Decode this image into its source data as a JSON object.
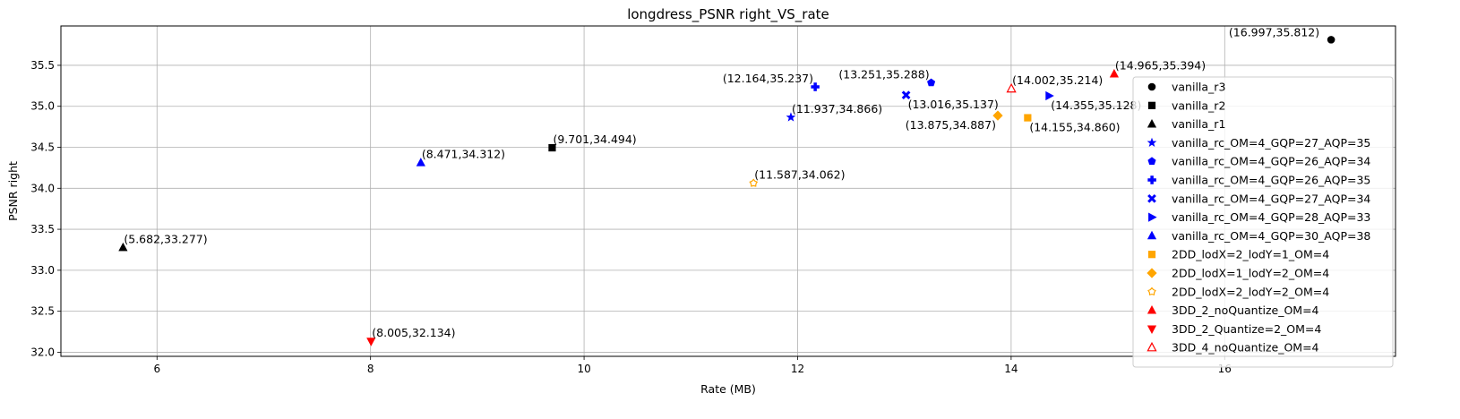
{
  "chart_data": {
    "type": "scatter",
    "title": "longdress_PSNR right_VS_rate",
    "xlabel": "Rate (MB)",
    "ylabel": "PSNR right",
    "xlim": [
      5.1,
      17.6
    ],
    "ylim": [
      31.95,
      35.98
    ],
    "xticks": [
      6,
      8,
      10,
      12,
      14,
      16
    ],
    "xtick_labels": [
      "6",
      "8",
      "10",
      "12",
      "14",
      "16"
    ],
    "yticks": [
      32.0,
      32.5,
      33.0,
      33.5,
      34.0,
      34.5,
      35.0,
      35.5
    ],
    "ytick_labels": [
      "32.0",
      "32.5",
      "33.0",
      "33.5",
      "34.0",
      "34.5",
      "35.0",
      "35.5"
    ],
    "grid": true,
    "legend_position": "right",
    "series": [
      {
        "name": "vanilla_r3",
        "marker": "circle",
        "color": "#000000",
        "filled": true,
        "x": 16.997,
        "y": 35.812,
        "label": "(16.997,35.812)",
        "label_side": "left"
      },
      {
        "name": "vanilla_r2",
        "marker": "square",
        "color": "#000000",
        "filled": true,
        "x": 9.701,
        "y": 34.494,
        "label": "(9.701,34.494)",
        "label_side": "upper-right"
      },
      {
        "name": "vanilla_r1",
        "marker": "triangle-up",
        "color": "#000000",
        "filled": true,
        "x": 5.682,
        "y": 33.277,
        "label": "(5.682,33.277)",
        "label_side": "upper-right"
      },
      {
        "name": "vanilla_rc_OM=4_GQP=27_AQP=35",
        "marker": "star",
        "color": "#0000ff",
        "filled": true,
        "x": 11.937,
        "y": 34.866,
        "label": "(11.937,34.866)",
        "label_side": "upper-right"
      },
      {
        "name": "vanilla_rc_OM=4_GQP=26_AQP=34",
        "marker": "pentagon",
        "color": "#0000ff",
        "filled": true,
        "x": 13.251,
        "y": 35.288,
        "label": "(13.251,35.288)",
        "label_side": "upper-left"
      },
      {
        "name": "vanilla_rc_OM=4_GQP=26_AQP=35",
        "marker": "plus",
        "color": "#0000ff",
        "filled": true,
        "x": 12.164,
        "y": 35.237,
        "label": "(12.164,35.237)",
        "label_side": "upper-left"
      },
      {
        "name": "vanilla_rc_OM=4_GQP=27_AQP=34",
        "marker": "x",
        "color": "#0000ff",
        "filled": true,
        "x": 13.016,
        "y": 35.137,
        "label": "(13.016,35.137)",
        "label_side": "lower-right"
      },
      {
        "name": "vanilla_rc_OM=4_GQP=28_AQP=33",
        "marker": "triangle-right",
        "color": "#0000ff",
        "filled": true,
        "x": 14.355,
        "y": 35.128,
        "label": "(14.355,35.128)",
        "label_side": "lower-right"
      },
      {
        "name": "vanilla_rc_OM=4_GQP=30_AQP=38",
        "marker": "triangle-up",
        "color": "#0000ff",
        "filled": true,
        "x": 8.471,
        "y": 34.312,
        "label": "(8.471,34.312)",
        "label_side": "upper-right"
      },
      {
        "name": "2DD_lodX=2_lodY=1_OM=4",
        "marker": "square",
        "color": "#ffa500",
        "filled": true,
        "x": 14.155,
        "y": 34.86,
        "label": "(14.155,34.860)",
        "label_side": "lower-right"
      },
      {
        "name": "2DD_lodX=1_lodY=2_OM=4",
        "marker": "diamond",
        "color": "#ffa500",
        "filled": true,
        "x": 13.875,
        "y": 34.887,
        "label": "(13.875,34.887)",
        "label_side": "lower-left"
      },
      {
        "name": "2DD_lodX=2_lodY=2_OM=4",
        "marker": "octagon",
        "color": "#ffa500",
        "filled": false,
        "x": 11.587,
        "y": 34.062,
        "label": "(11.587,34.062)",
        "label_side": "upper-right"
      },
      {
        "name": "3DD_2_noQuantize_OM=4",
        "marker": "triangle-up",
        "color": "#ff0000",
        "filled": true,
        "x": 14.965,
        "y": 35.394,
        "label": "(14.965,35.394)",
        "label_side": "upper-right"
      },
      {
        "name": "3DD_2_Quantize=2_OM=4",
        "marker": "triangle-down",
        "color": "#ff0000",
        "filled": true,
        "x": 8.005,
        "y": 32.134,
        "label": "(8.005,32.134)",
        "label_side": "upper-right"
      },
      {
        "name": "3DD_4_noQuantize_OM=4",
        "marker": "triangle-up",
        "color": "#ff0000",
        "filled": false,
        "x": 14.002,
        "y": 35.214,
        "label": "(14.002,35.214)",
        "label_side": "upper-right"
      }
    ]
  }
}
